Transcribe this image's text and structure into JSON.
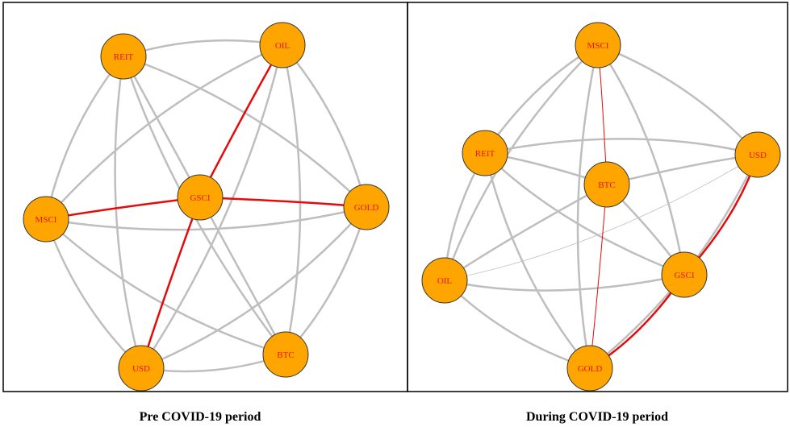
{
  "colors": {
    "node_fill": "#FFA500",
    "node_stroke": "#333333",
    "label": "#E8141E",
    "edge_default": "#BEBEBE",
    "edge_highlight": "#E30B0B",
    "panel_border": "#000000"
  },
  "panels": [
    {
      "caption": "Pre COVID-19 period",
      "nodes": [
        {
          "id": "REIT",
          "label": "REIT"
        },
        {
          "id": "OIL",
          "label": "OIL"
        },
        {
          "id": "GSCI",
          "label": "GSCI"
        },
        {
          "id": "MSCI",
          "label": "MSCI"
        },
        {
          "id": "GOLD",
          "label": "GOLD"
        },
        {
          "id": "USD",
          "label": "USD"
        },
        {
          "id": "BTC",
          "label": "BTC"
        }
      ],
      "edges": [
        {
          "from": "REIT",
          "to": "OIL"
        },
        {
          "from": "REIT",
          "to": "MSCI"
        },
        {
          "from": "REIT",
          "to": "GSCI"
        },
        {
          "from": "REIT",
          "to": "GOLD"
        },
        {
          "from": "REIT",
          "to": "USD"
        },
        {
          "from": "REIT",
          "to": "BTC"
        },
        {
          "from": "OIL",
          "to": "GSCI",
          "highlight": true
        },
        {
          "from": "OIL",
          "to": "MSCI"
        },
        {
          "from": "OIL",
          "to": "GOLD"
        },
        {
          "from": "OIL",
          "to": "BTC"
        },
        {
          "from": "OIL",
          "to": "USD"
        },
        {
          "from": "MSCI",
          "to": "GSCI",
          "highlight": true
        },
        {
          "from": "MSCI",
          "to": "GOLD"
        },
        {
          "from": "MSCI",
          "to": "USD"
        },
        {
          "from": "MSCI",
          "to": "BTC"
        },
        {
          "from": "GSCI",
          "to": "GOLD",
          "highlight": true
        },
        {
          "from": "GSCI",
          "to": "USD",
          "highlight": true
        },
        {
          "from": "GSCI",
          "to": "BTC"
        },
        {
          "from": "GOLD",
          "to": "USD"
        },
        {
          "from": "GOLD",
          "to": "BTC"
        },
        {
          "from": "USD",
          "to": "BTC"
        }
      ]
    },
    {
      "caption": "During COVID-19 period",
      "nodes": [
        {
          "id": "MSCI",
          "label": "MSCI"
        },
        {
          "id": "REIT",
          "label": "REIT"
        },
        {
          "id": "USD",
          "label": "USD"
        },
        {
          "id": "BTC",
          "label": "BTC"
        },
        {
          "id": "OIL",
          "label": "OIL"
        },
        {
          "id": "GSCI",
          "label": "GSCI"
        },
        {
          "id": "GOLD",
          "label": "GOLD"
        }
      ],
      "edges": [
        {
          "from": "MSCI",
          "to": "REIT"
        },
        {
          "from": "MSCI",
          "to": "USD"
        },
        {
          "from": "MSCI",
          "to": "BTC",
          "highlight": true,
          "thin": true
        },
        {
          "from": "MSCI",
          "to": "OIL"
        },
        {
          "from": "MSCI",
          "to": "GSCI"
        },
        {
          "from": "MSCI",
          "to": "GOLD"
        },
        {
          "from": "REIT",
          "to": "BTC"
        },
        {
          "from": "REIT",
          "to": "USD"
        },
        {
          "from": "REIT",
          "to": "GSCI"
        },
        {
          "from": "REIT",
          "to": "OIL"
        },
        {
          "from": "REIT",
          "to": "GOLD"
        },
        {
          "from": "USD",
          "to": "BTC"
        },
        {
          "from": "USD",
          "to": "GSCI",
          "highlight": true
        },
        {
          "from": "USD",
          "to": "OIL",
          "thin": true
        },
        {
          "from": "USD",
          "to": "GOLD"
        },
        {
          "from": "BTC",
          "to": "GOLD",
          "highlight": true,
          "thin": true
        },
        {
          "from": "BTC",
          "to": "GSCI"
        },
        {
          "from": "BTC",
          "to": "OIL"
        },
        {
          "from": "OIL",
          "to": "GSCI"
        },
        {
          "from": "OIL",
          "to": "GOLD"
        },
        {
          "from": "GSCI",
          "to": "GOLD",
          "highlight": true
        }
      ]
    }
  ]
}
